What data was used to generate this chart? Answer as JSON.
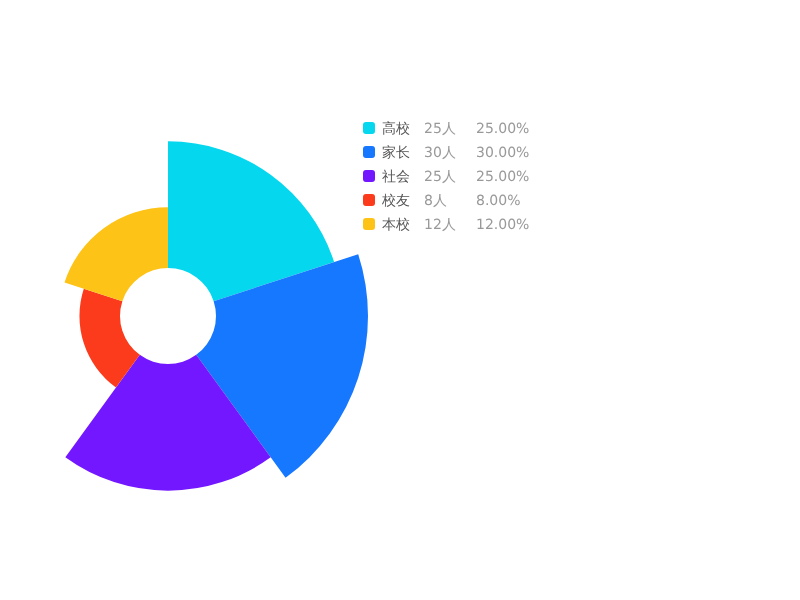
{
  "chart_data": {
    "type": "other",
    "categories": [
      "高校",
      "家长",
      "社会",
      "校友",
      "本校"
    ],
    "values": [
      25,
      30,
      25,
      8,
      12
    ],
    "colors": [
      "#05d7ee",
      "#1677ff",
      "#7217ff",
      "#fb3b1b",
      "#fdc317"
    ],
    "value_labels": [
      "25人",
      "30人",
      "25人",
      "8人",
      "12人"
    ],
    "annotations": [
      "25.00%",
      "30.00%",
      "25.00%",
      "8.00%",
      "12.00%"
    ]
  }
}
